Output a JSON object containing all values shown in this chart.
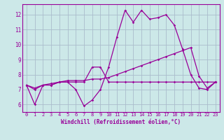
{
  "x": [
    0,
    1,
    2,
    3,
    4,
    5,
    6,
    7,
    8,
    9,
    10,
    11,
    12,
    13,
    14,
    15,
    16,
    17,
    18,
    19,
    20,
    21,
    22,
    23
  ],
  "line1": [
    7.3,
    6.0,
    7.3,
    7.3,
    7.5,
    7.5,
    7.0,
    5.9,
    6.3,
    7.0,
    8.5,
    10.5,
    12.3,
    11.5,
    12.3,
    11.7,
    11.8,
    12.0,
    11.3,
    9.7,
    8.0,
    7.1,
    7.0,
    7.5
  ],
  "line2": [
    7.3,
    7.0,
    7.3,
    7.3,
    7.5,
    7.5,
    7.5,
    7.5,
    8.5,
    8.5,
    7.5,
    7.5,
    7.5,
    7.5,
    7.5,
    7.5,
    7.5,
    7.5,
    7.5,
    7.5,
    7.5,
    7.5,
    7.5,
    7.5
  ],
  "line3": [
    7.3,
    7.1,
    7.3,
    7.4,
    7.5,
    7.6,
    7.6,
    7.6,
    7.7,
    7.7,
    7.8,
    8.0,
    8.2,
    8.4,
    8.6,
    8.8,
    9.0,
    9.2,
    9.4,
    9.6,
    9.8,
    7.9,
    7.1,
    7.5
  ],
  "color": "#990099",
  "bg_color": "#cce8e8",
  "grid_color": "#aabccc",
  "xlabel": "Windchill (Refroidissement éolien,°C)",
  "ylim": [
    5.5,
    12.7
  ],
  "xlim": [
    -0.5,
    23.5
  ],
  "yticks": [
    6,
    7,
    8,
    9,
    10,
    11,
    12
  ],
  "xticks": [
    0,
    1,
    2,
    3,
    4,
    5,
    6,
    7,
    8,
    9,
    10,
    11,
    12,
    13,
    14,
    15,
    16,
    17,
    18,
    19,
    20,
    21,
    22,
    23
  ],
  "marker": "D",
  "markersize": 1.8,
  "linewidth": 0.9,
  "tick_fontsize": 5.5,
  "xlabel_fontsize": 5.5
}
